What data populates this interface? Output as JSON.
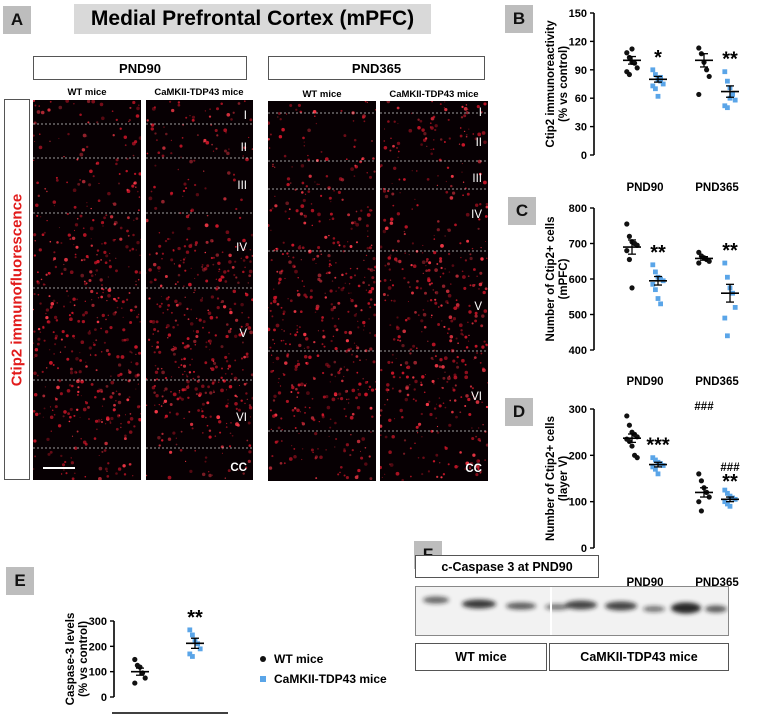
{
  "panelA": {
    "letter": "A",
    "title": "Medial Prefrontal Cortex (mPFC)",
    "side_label": "Ctip2 immunofluorescence",
    "pnd90": {
      "header": "PND90",
      "wt_label": "WT mice",
      "tg_label": "CaMKII-TDP43 mice",
      "layers": [
        "I",
        "II",
        "III",
        "IV",
        "V",
        "VI",
        "CC"
      ]
    },
    "pnd365": {
      "header": "PND365",
      "wt_label": "WT mice",
      "tg_label": "CaMKII-TDP43 mice",
      "layers": [
        "I",
        "II",
        "III",
        "IV",
        "V",
        "VI",
        "CC"
      ]
    }
  },
  "colors": {
    "wt": "#111111",
    "tg": "#5aa5e8",
    "fluor": "#e21b1b",
    "letter_bg": "#bdbdbd",
    "title_bg": "#d9d9d9"
  },
  "chart_data": [
    {
      "id": "B",
      "type": "scatter",
      "ylabel": "Ctip2 immunoreactivity (% vs control)",
      "ylabel_lines": [
        "Ctip2 immunoreactivity",
        "(% vs control)"
      ],
      "ylim": [
        0,
        150
      ],
      "yticks": [
        0,
        30,
        60,
        90,
        120,
        150
      ],
      "categories": [
        "PND90",
        "PND365"
      ],
      "series": [
        {
          "group": "WT",
          "values": [
            [
              108,
              103,
              98,
              97,
              92,
              88,
              85,
              112
            ],
            [
              113,
              107,
              98,
              90,
              83,
              64
            ]
          ],
          "mean": [
            100,
            100
          ],
          "sem": [
            4,
            7
          ]
        },
        {
          "group": "TDP43",
          "values": [
            [
              90,
              85,
              80,
              78,
              75,
              73,
              70,
              62,
              82
            ],
            [
              88,
              78,
              71,
              64,
              58,
              52,
              50,
              60
            ]
          ],
          "mean": [
            80,
            67
          ],
          "sem": [
            3,
            6
          ]
        }
      ],
      "annotations": [
        [
          "*",
          "**"
        ]
      ]
    },
    {
      "id": "C",
      "type": "scatter",
      "ylabel": "Number of Ctip2+ cells (mPFC)",
      "ylabel_lines": [
        "Number of Ctip2+ cells",
        "(mPFC)"
      ],
      "ylim": [
        400,
        800
      ],
      "yticks": [
        400,
        500,
        600,
        700,
        800
      ],
      "categories": [
        "PND90",
        "PND365"
      ],
      "series": [
        {
          "group": "WT",
          "values": [
            [
              755,
              720,
              705,
              700,
              695,
              680,
              655,
              575
            ],
            [
              675,
              665,
              660,
              655,
              650,
              645
            ]
          ],
          "mean": [
            690,
            658
          ],
          "sem": [
            20,
            5
          ]
        },
        {
          "group": "TDP43",
          "values": [
            [
              640,
              620,
              605,
              600,
              595,
              585,
              570,
              545,
              530
            ],
            [
              645,
              605,
              575,
              560,
              520,
              490,
              440
            ]
          ],
          "mean": [
            595,
            560
          ],
          "sem": [
            12,
            25
          ]
        }
      ],
      "annotations": [
        [
          "**",
          "**"
        ]
      ]
    },
    {
      "id": "D",
      "type": "scatter",
      "ylabel": "Number of Ctip2+ cells (layer V)",
      "ylabel_lines": [
        "Number of Ctip2+ cells",
        "(layer V)"
      ],
      "ylim": [
        0,
        300
      ],
      "yticks": [
        0,
        100,
        200,
        300
      ],
      "categories": [
        "PND90",
        "PND365"
      ],
      "series": [
        {
          "group": "WT",
          "values": [
            [
              285,
              265,
              250,
              245,
              240,
              235,
              230,
              220,
              200,
              195
            ],
            [
              160,
              145,
              130,
              120,
              110,
              100,
              80
            ]
          ],
          "mean": [
            237,
            120
          ],
          "sem": [
            9,
            10
          ]
        },
        {
          "group": "TDP43",
          "values": [
            [
              195,
              190,
              185,
              182,
              178,
              175,
              170,
              160
            ],
            [
              125,
              118,
              112,
              108,
              105,
              100,
              95,
              90
            ]
          ],
          "mean": [
            180,
            105
          ],
          "sem": [
            5,
            5
          ]
        }
      ],
      "annotations": [
        [
          "***",
          "**"
        ],
        [
          "###",
          "###"
        ]
      ]
    },
    {
      "id": "E",
      "type": "scatter",
      "ylabel": "Caspase-3 levels (% vs control)",
      "ylabel_lines": [
        "Caspase-3 levels",
        "(% vs control)"
      ],
      "ylim": [
        0,
        300
      ],
      "yticks": [
        0,
        100,
        200,
        300
      ],
      "categories": [
        ""
      ],
      "series": [
        {
          "group": "WT",
          "values": [
            [
              148,
              125,
              118,
              95,
              75,
              55
            ]
          ],
          "mean": [
            100
          ],
          "sem": [
            14
          ]
        },
        {
          "group": "TDP43",
          "values": [
            [
              265,
              245,
              225,
              210,
              190,
              170,
              160
            ]
          ],
          "mean": [
            212
          ],
          "sem": [
            20
          ]
        }
      ],
      "annotations": [
        [
          "**"
        ]
      ]
    }
  ],
  "panel_labels": {
    "B": "B",
    "C": "C",
    "D": "D",
    "E": "E",
    "F": "F"
  },
  "legend": {
    "wt": "WT mice",
    "tg": "CaMKII-TDP43 mice"
  },
  "panelF": {
    "header": "c-Caspase 3 at PND90",
    "group_wt": "WT mice",
    "group_tg": "CaMKII-TDP43 mice"
  }
}
